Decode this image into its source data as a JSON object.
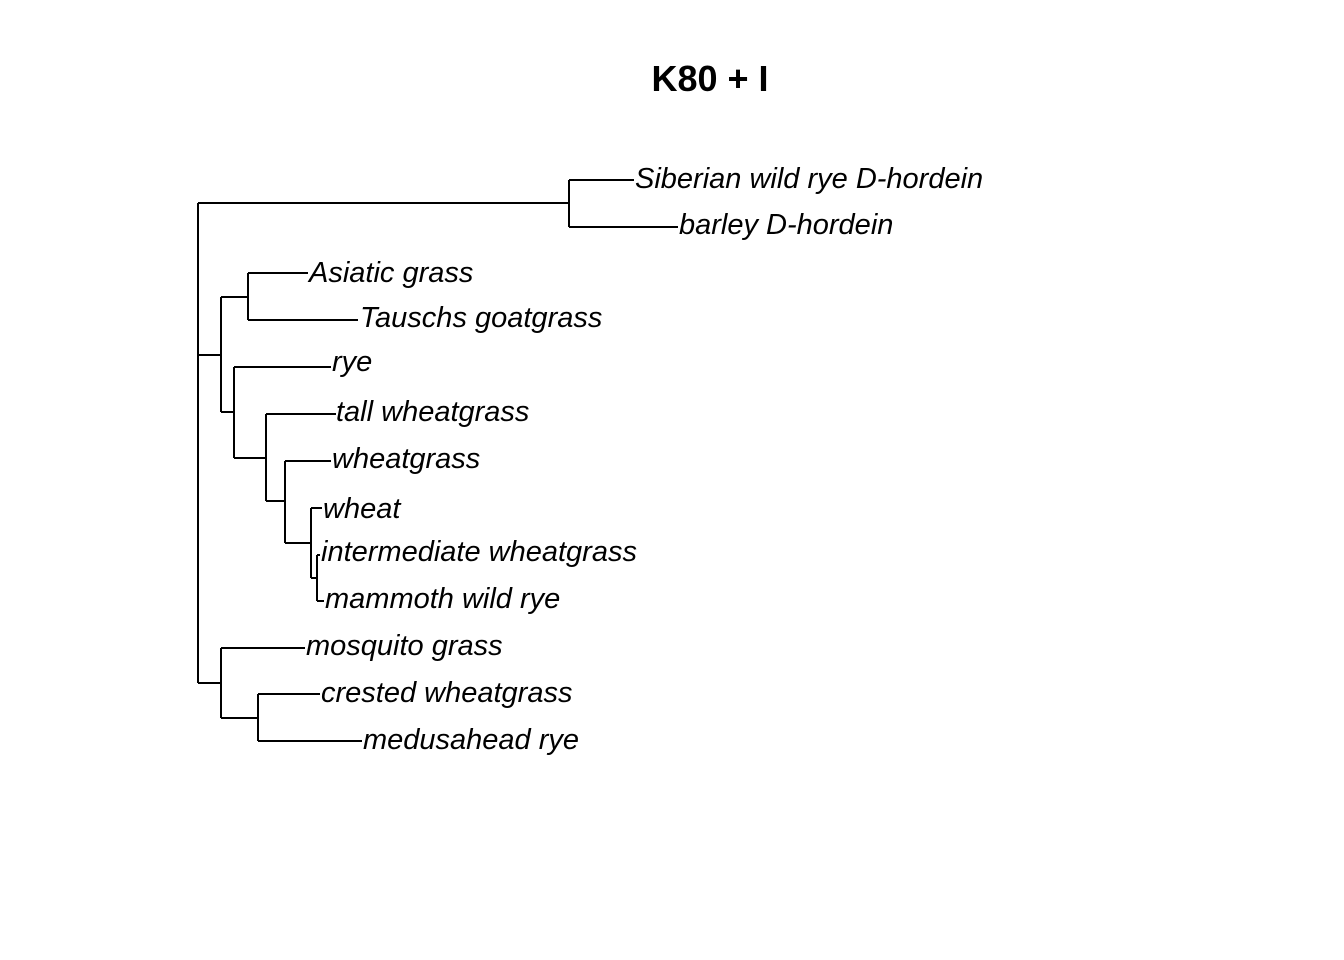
{
  "title": "K80 + I",
  "tree": {
    "tips": [
      "Siberian wild rye D-hordein",
      "barley D-hordein",
      "Asiatic grass",
      "Tauschs goatgrass",
      "rye",
      "tall wheatgrass",
      "wheatgrass",
      "wheat",
      "intermediate wheatgrass",
      "mammoth wild rye",
      "mosquito grass",
      "crested wheatgrass",
      "medusahead rye"
    ]
  }
}
